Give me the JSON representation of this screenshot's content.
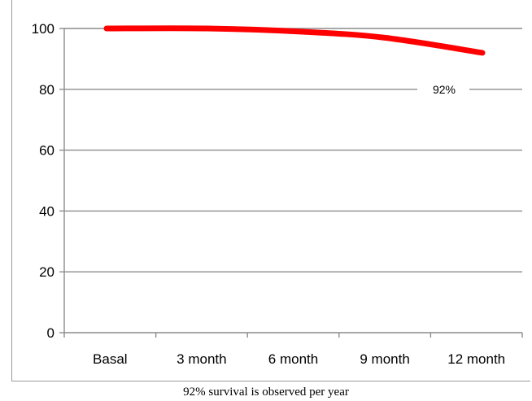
{
  "caption": "92% survival is observed per year",
  "colors": {
    "series": "#ff0000",
    "gridline": "#8c8c8c",
    "axis": "#8c8c8c"
  },
  "chart_data": {
    "type": "line",
    "title": "",
    "xlabel": "",
    "ylabel": "",
    "categories": [
      "Basal",
      "3 month",
      "6 month",
      "9 month",
      "12 month"
    ],
    "ylim": [
      0,
      100
    ],
    "yticks": [
      0,
      20,
      40,
      60,
      80,
      100
    ],
    "grid": true,
    "series": [
      {
        "values": [
          100,
          100,
          99,
          97,
          92
        ]
      }
    ],
    "annotations": [
      {
        "text": "92%",
        "x": "12 month",
        "y": 80
      }
    ]
  }
}
